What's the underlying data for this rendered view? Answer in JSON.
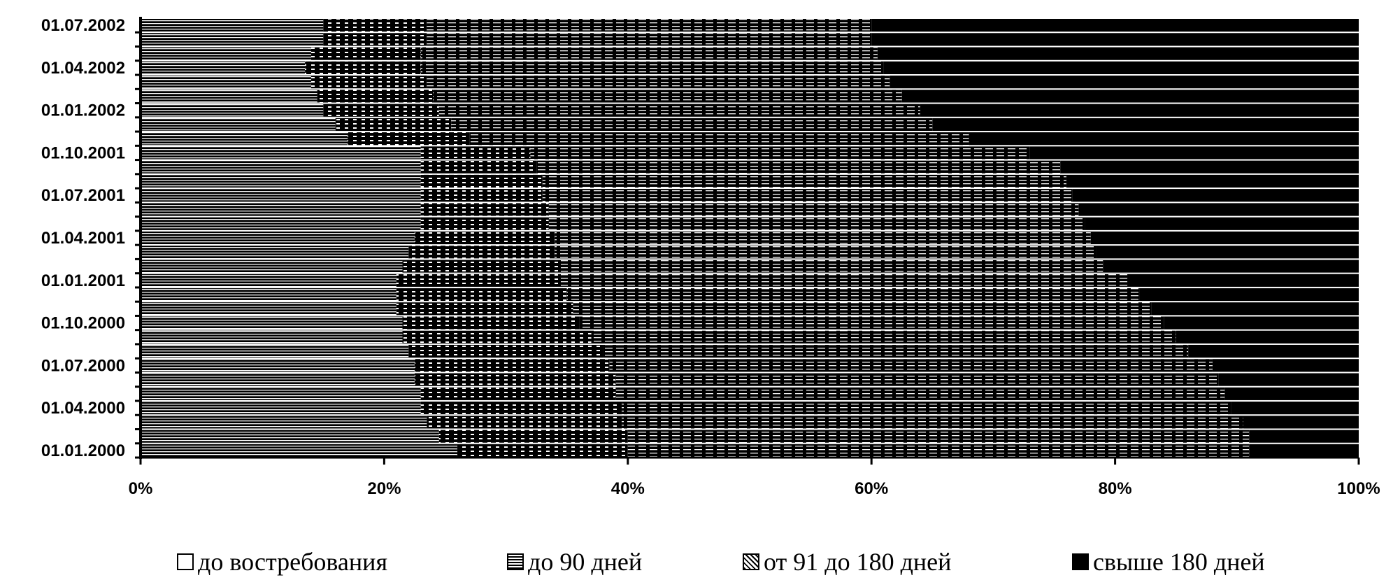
{
  "chart_data": {
    "type": "bar",
    "orientation": "horizontal",
    "stacked": "100%",
    "categories": [
      "01.01.2000",
      "",
      "",
      "01.04.2000",
      "",
      "",
      "01.07.2000",
      "",
      "",
      "01.10.2000",
      "",
      "",
      "01.01.2001",
      "",
      "",
      "01.04.2001",
      "",
      "",
      "01.07.2001",
      "",
      "",
      "01.10.2001",
      "",
      "",
      "01.01.2002",
      "",
      "",
      "01.04.2002",
      "",
      "",
      "01.07.2002"
    ],
    "series": [
      {
        "name": "до востребования",
        "pattern": "white",
        "values": [
          26,
          24.5,
          23.5,
          23,
          23,
          22.5,
          22.5,
          22,
          21.5,
          21.5,
          21,
          21,
          21,
          21.5,
          22,
          22.5,
          23,
          23,
          23,
          23,
          23,
          23,
          17,
          16,
          15,
          14.5,
          14,
          13.5,
          14,
          15,
          15
        ]
      },
      {
        "name": "до 90 дней",
        "pattern": "checkered",
        "values": [
          14,
          15.5,
          16,
          16.5,
          16,
          16.5,
          16,
          16,
          15.5,
          14.5,
          14.5,
          14,
          13.5,
          13,
          12,
          11.5,
          10.5,
          10.5,
          10,
          10,
          9.5,
          9,
          10,
          9.5,
          9.5,
          9.5,
          9.5,
          9.5,
          9,
          8.5,
          8.5
        ]
      },
      {
        "name": "от 91 до 180 дней",
        "pattern": "hatched",
        "values": [
          51,
          51,
          51,
          50,
          50,
          49.5,
          49.5,
          48,
          48,
          48,
          47.5,
          47,
          46.5,
          44.5,
          44.5,
          44,
          44,
          43.5,
          43.5,
          43,
          43,
          41,
          41,
          39.5,
          39.5,
          38.5,
          38,
          38,
          37.5,
          36.5,
          36.5
        ]
      },
      {
        "name": "свыше 180 дней",
        "pattern": "solid-black",
        "values": [
          9,
          9,
          9.5,
          10.5,
          11,
          11.5,
          12,
          14,
          15,
          16,
          17,
          18,
          19,
          21,
          21.5,
          22,
          22.5,
          23,
          23.5,
          24,
          24.5,
          27,
          32,
          35,
          36,
          37.5,
          38.5,
          39,
          39.5,
          40,
          40
        ]
      }
    ],
    "x_ticks": [
      "0%",
      "20%",
      "40%",
      "60%",
      "80%",
      "100%"
    ],
    "xlim": [
      0,
      100
    ],
    "grid": "vertical",
    "legend_position": "bottom",
    "colors": {
      "ink": "#000000",
      "paper": "#ffffff"
    }
  }
}
